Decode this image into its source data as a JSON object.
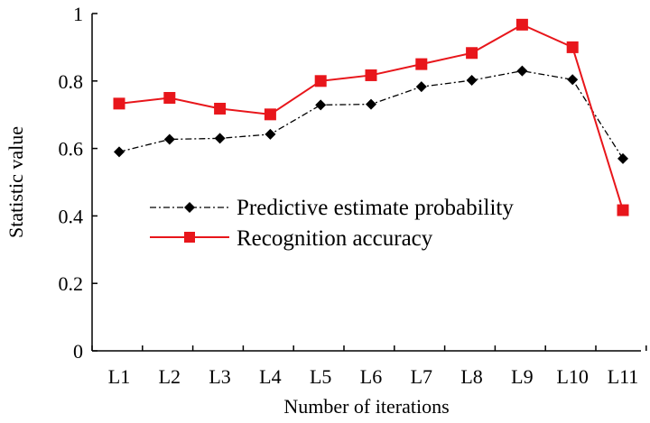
{
  "chart_data": {
    "type": "line",
    "title": "",
    "xlabel": "Number of iterations",
    "ylabel": "Statistic value",
    "ylim": [
      0,
      1
    ],
    "yticks": [
      0,
      0.2,
      0.4,
      0.6,
      0.8,
      1
    ],
    "ytick_labels": [
      "0",
      "0.2",
      "0.4",
      "0.6",
      "0.8",
      "1"
    ],
    "categories": [
      "L1",
      "L2",
      "L3",
      "L4",
      "L5",
      "L6",
      "L7",
      "L8",
      "L9",
      "L10",
      "L11"
    ],
    "grid": false,
    "legend_position": "center-left",
    "series": [
      {
        "name": "Predictive estimate probability",
        "color": "#000000",
        "line_style": "dash-dot",
        "marker": "diamond",
        "values": [
          0.59,
          0.627,
          0.63,
          0.642,
          0.729,
          0.731,
          0.783,
          0.802,
          0.83,
          0.804,
          0.57
        ]
      },
      {
        "name": "Recognition accuracy",
        "color": "#e8161b",
        "line_style": "solid",
        "marker": "square",
        "values": [
          0.733,
          0.75,
          0.718,
          0.701,
          0.8,
          0.817,
          0.85,
          0.883,
          0.967,
          0.9,
          0.417
        ]
      }
    ]
  }
}
